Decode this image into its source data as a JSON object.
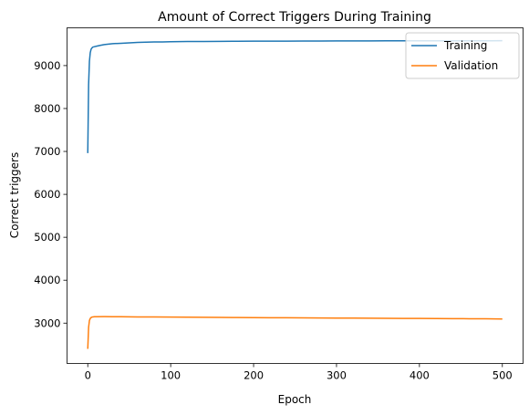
{
  "chart_data": {
    "type": "line",
    "title": "Amount of Correct Triggers During Training",
    "xlabel": "Epoch",
    "ylabel": "Correct triggers",
    "xlim": [
      -25,
      525
    ],
    "ylim": [
      2060,
      9880
    ],
    "xticks": [
      0,
      100,
      200,
      300,
      400,
      500
    ],
    "yticks": [
      3000,
      4000,
      5000,
      6000,
      7000,
      8000,
      9000
    ],
    "grid": false,
    "legend": "upper-right",
    "series": [
      {
        "name": "Training",
        "color": "#1f77b4",
        "x": [
          0,
          1,
          2,
          3,
          4,
          5,
          6,
          8,
          10,
          15,
          20,
          25,
          30,
          40,
          50,
          60,
          70,
          80,
          90,
          100,
          120,
          140,
          160,
          180,
          200,
          220,
          240,
          260,
          280,
          300,
          320,
          340,
          360,
          380,
          400,
          420,
          440,
          460,
          480,
          500
        ],
        "y": [
          6960,
          8550,
          9100,
          9300,
          9380,
          9410,
          9430,
          9440,
          9450,
          9470,
          9490,
          9500,
          9510,
          9520,
          9530,
          9540,
          9545,
          9550,
          9552,
          9555,
          9560,
          9562,
          9565,
          9567,
          9568,
          9570,
          9570,
          9572,
          9573,
          9574,
          9575,
          9575,
          9576,
          9576,
          9577,
          9577,
          9578,
          9578,
          9578,
          9579
        ]
      },
      {
        "name": "Validation",
        "color": "#ff7f0e",
        "x": [
          0,
          1,
          2,
          3,
          4,
          5,
          6,
          8,
          10,
          20,
          30,
          40,
          50,
          60,
          80,
          100,
          120,
          140,
          160,
          180,
          200,
          220,
          240,
          260,
          280,
          300,
          320,
          340,
          360,
          380,
          400,
          420,
          440,
          460,
          480,
          500
        ],
        "y": [
          2400,
          2900,
          3060,
          3110,
          3130,
          3140,
          3145,
          3148,
          3150,
          3152,
          3150,
          3148,
          3146,
          3145,
          3143,
          3140,
          3138,
          3135,
          3133,
          3130,
          3128,
          3126,
          3124,
          3122,
          3120,
          3118,
          3116,
          3114,
          3112,
          3110,
          3108,
          3106,
          3104,
          3102,
          3100,
          3095
        ]
      }
    ]
  }
}
